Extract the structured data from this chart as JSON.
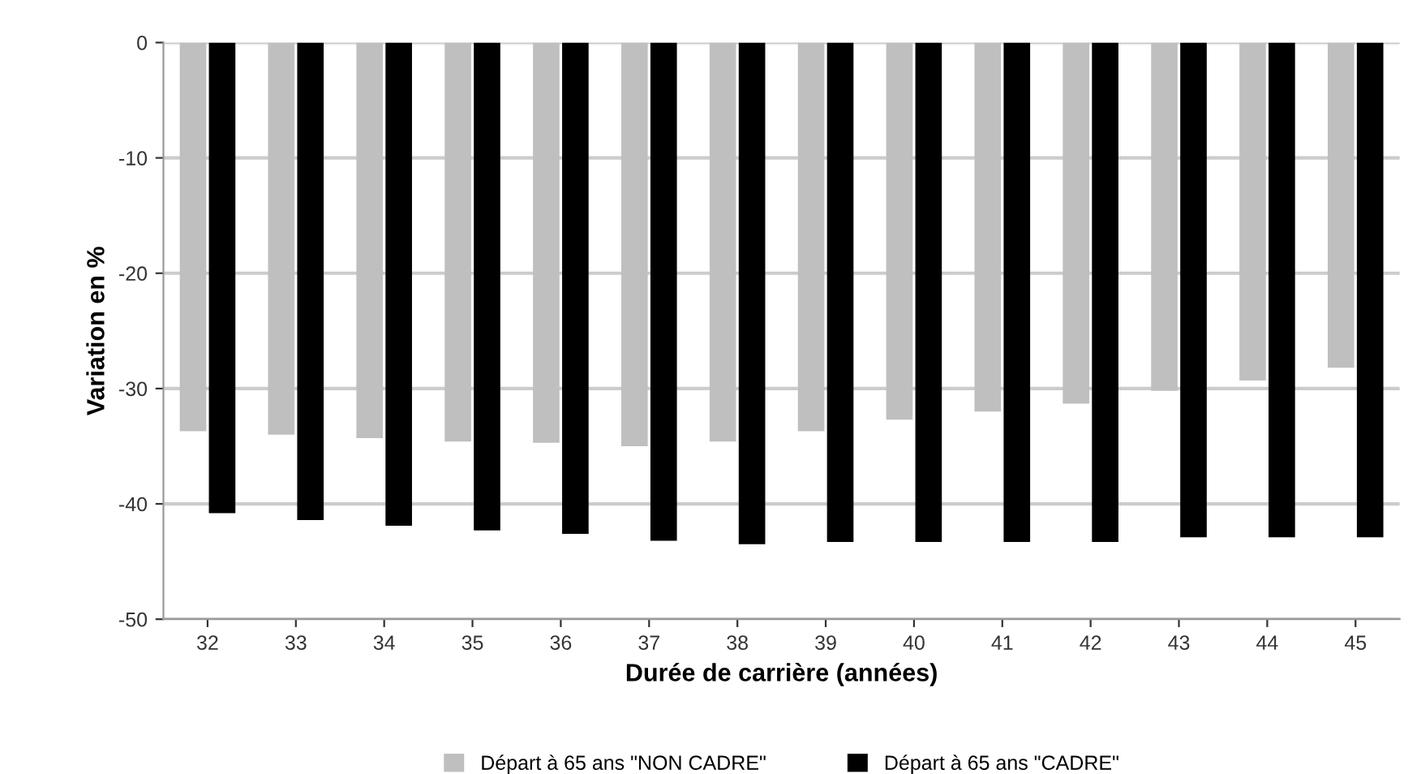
{
  "chart_data": {
    "type": "bar",
    "xlabel": "Durée de carrière (années)",
    "ylabel": "Variation en %",
    "categories": [
      "32",
      "33",
      "34",
      "35",
      "36",
      "37",
      "38",
      "39",
      "40",
      "41",
      "42",
      "43",
      "44",
      "45"
    ],
    "series": [
      {
        "name": "Départ à 65 ans \"NON CADRE\"",
        "color": "#bfbfbf",
        "values": [
          -33.7,
          -34,
          -34.3,
          -34.6,
          -34.7,
          -35,
          -34.6,
          -33.7,
          -32.7,
          -32,
          -31.3,
          -30.2,
          -29.3,
          -28.2
        ]
      },
      {
        "name": "Départ à 65 ans \"CADRE\"",
        "color": "#000000",
        "values": [
          -40.8,
          -41.4,
          -41.9,
          -42.3,
          -42.6,
          -43.2,
          -43.5,
          -43.3,
          -43.3,
          -43.3,
          -43.3,
          -42.9,
          -42.9,
          -42.9
        ]
      }
    ],
    "ylim": [
      -50,
      0
    ],
    "yticks": [
      -50,
      -40,
      -30,
      -20,
      -10,
      0
    ],
    "grid": "y",
    "legend": "bottom"
  }
}
